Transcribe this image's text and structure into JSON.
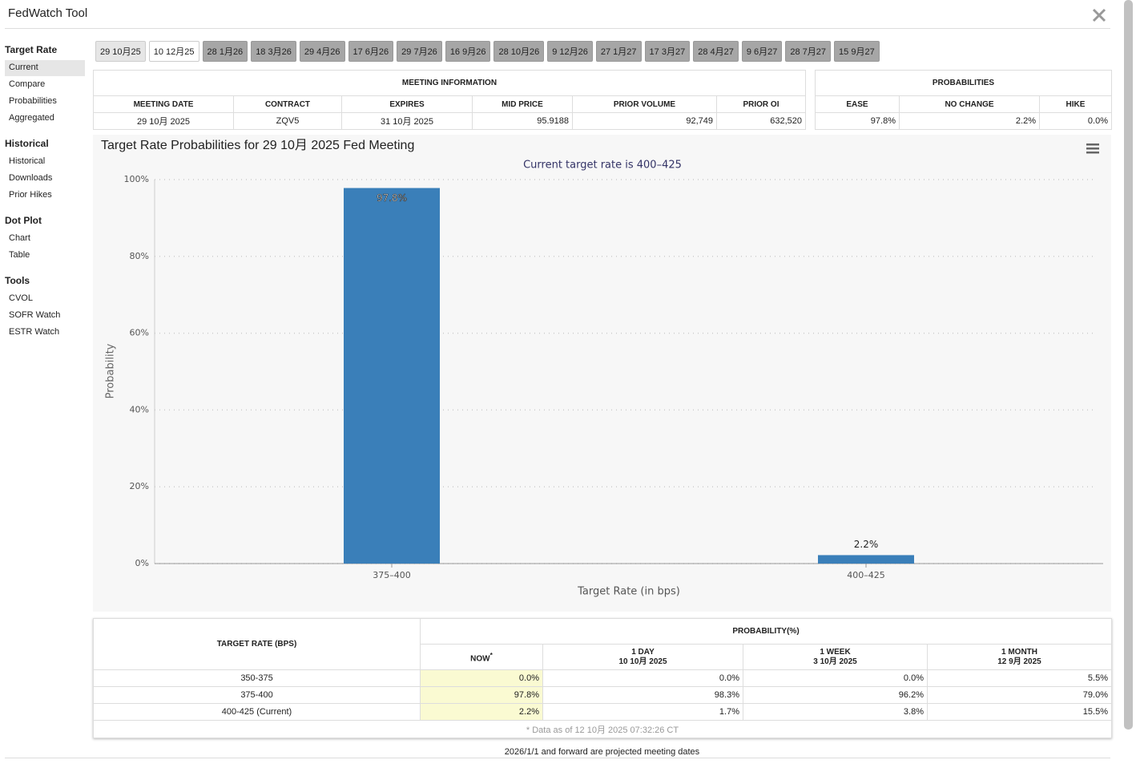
{
  "header": {
    "title": "FedWatch Tool"
  },
  "sidebar": [
    {
      "title": "Target Rate",
      "items": [
        "Current",
        "Compare",
        "Probabilities",
        "Aggregated"
      ]
    },
    {
      "title": "Historical",
      "items": [
        "Historical",
        "Downloads",
        "Prior Hikes"
      ]
    },
    {
      "title": "Dot Plot",
      "items": [
        "Chart",
        "Table"
      ]
    },
    {
      "title": "Tools",
      "items": [
        "CVOL",
        "SOFR Watch",
        "ESTR Watch"
      ]
    }
  ],
  "tabs": [
    "29 10月25",
    "10 12月25",
    "28 1月26",
    "18 3月26",
    "29 4月26",
    "17 6月26",
    "29 7月26",
    "16 9月26",
    "28 10月26",
    "9 12月26",
    "27 1月27",
    "17 3月27",
    "28 4月27",
    "9 6月27",
    "28 7月27",
    "15 9月27"
  ],
  "meeting_info": {
    "title": "MEETING INFORMATION",
    "columns": [
      "MEETING DATE",
      "CONTRACT",
      "EXPIRES",
      "MID PRICE",
      "PRIOR VOLUME",
      "PRIOR OI"
    ],
    "row": [
      "29 10月 2025",
      "ZQV5",
      "31 10月 2025",
      "95.9188",
      "92,749",
      "632,520"
    ]
  },
  "probabilities": {
    "title": "PROBABILITIES",
    "columns": [
      "EASE",
      "NO CHANGE",
      "HIKE"
    ],
    "row": [
      "97.8%",
      "2.2%",
      "0.0%"
    ]
  },
  "chart_data": {
    "type": "bar",
    "title": "Target Rate Probabilities for 29 10月 2025 Fed Meeting",
    "subtitle": "Current target rate is 400–425",
    "x_label": "Target Rate (in bps)",
    "y_label": "Probability",
    "categories": [
      "375–400",
      "400–425"
    ],
    "values": [
      97.8,
      2.2
    ],
    "value_labels": [
      "97.8%",
      "2.2%"
    ],
    "color": "#3a7fb9",
    "ylim": [
      0,
      100
    ],
    "yticks": [
      {
        "value": 0,
        "label": "0%"
      },
      {
        "value": 20,
        "label": "20%"
      },
      {
        "value": 40,
        "label": "40%"
      },
      {
        "value": 60,
        "label": "60%"
      },
      {
        "value": 80,
        "label": "80%"
      },
      {
        "value": 100,
        "label": "100%"
      }
    ],
    "grid": true
  },
  "prob_table": {
    "row_header": "TARGET RATE (BPS)",
    "title": "PROBABILITY(%)",
    "columns": [
      {
        "name": "NOW",
        "mark": "*"
      },
      {
        "name": "1 DAY",
        "date": "10 10月 2025"
      },
      {
        "name": "1 WEEK",
        "date": "3 10月 2025"
      },
      {
        "name": "1 MONTH",
        "date": "12 9月 2025"
      }
    ],
    "rows": [
      [
        "350-375",
        "0.0%",
        "0.0%",
        "0.0%",
        "5.5%"
      ],
      [
        "375-400",
        "97.8%",
        "98.3%",
        "96.2%",
        "79.0%"
      ],
      [
        "400-425 (Current)",
        "2.2%",
        "1.7%",
        "3.8%",
        "15.5%"
      ]
    ],
    "footnote": "* Data as of 12 10月 2025 07:32:26 CT"
  },
  "note": "2026/1/1 and forward are projected meeting dates"
}
